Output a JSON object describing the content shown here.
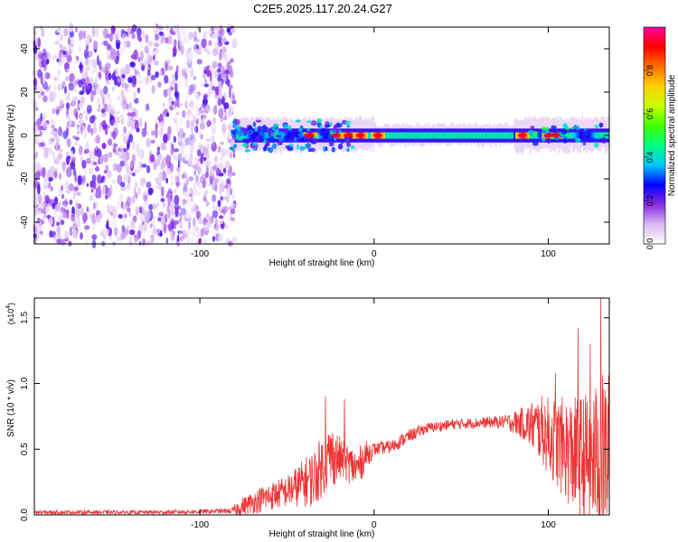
{
  "figure": {
    "title": "C2E5.2025.117.20.24.G27"
  },
  "chart_data": [
    {
      "type": "heatmap",
      "xlabel": "Height of straight line (km)",
      "ylabel": "Frequency (Hz)",
      "xlim": [
        -195,
        135
      ],
      "ylim": [
        -50,
        50
      ],
      "xticks": [
        -100,
        0,
        100
      ],
      "yticks": [
        -40,
        -20,
        0,
        20,
        40
      ],
      "colorbar": {
        "label": "Normalized spectral amplitude",
        "range": [
          0,
          1
        ],
        "ticks": [
          0.0,
          0.2,
          0.4,
          0.6,
          0.8
        ],
        "colormap": [
          "#ffffff",
          "#d8b8f0",
          "#8a2be2",
          "#0000ff",
          "#00c8ff",
          "#00ff80",
          "#40ff00",
          "#c8ff00",
          "#ffd000",
          "#ff7000",
          "#ff0000",
          "#ff00a0"
        ]
      },
      "description": "Noise region below -80 km with scattered purple; narrow band near 0 Hz from -80 to 132 km with peaks (red) at about -35, -20, -10, 0, 85, 105 km",
      "peaks_x": [
        -37,
        -22,
        -15,
        -8,
        2,
        85,
        100,
        104
      ]
    },
    {
      "type": "line",
      "xlabel": "Height of straight line (km)",
      "ylabel": "SNR (10 * v/v)",
      "yscale_label": "(x10",
      "yscale_exp": "4",
      "yscale_close": ")",
      "xlim": [
        -195,
        135
      ],
      "ylim": [
        0,
        1.65
      ],
      "xticks": [
        -100,
        0,
        100
      ],
      "yticks": [
        0.0,
        0.5,
        1.0,
        1.5
      ],
      "color": "#ee3333",
      "envelope": {
        "x": [
          -195,
          -120,
          -82,
          -78,
          -65,
          -50,
          -35,
          -25,
          -18,
          -10,
          -5,
          0,
          10,
          20,
          30,
          45,
          60,
          75,
          85,
          95,
          105,
          115,
          125,
          132
        ],
        "mean": [
          0.02,
          0.02,
          0.03,
          0.05,
          0.12,
          0.18,
          0.28,
          0.45,
          0.42,
          0.35,
          0.45,
          0.5,
          0.52,
          0.6,
          0.66,
          0.69,
          0.7,
          0.71,
          0.7,
          0.66,
          0.55,
          0.45,
          0.42,
          0.45
        ],
        "amp": [
          0.015,
          0.015,
          0.02,
          0.06,
          0.1,
          0.12,
          0.22,
          0.25,
          0.15,
          0.15,
          0.12,
          0.05,
          0.05,
          0.05,
          0.04,
          0.04,
          0.04,
          0.05,
          0.12,
          0.25,
          0.35,
          0.45,
          0.55,
          0.65
        ]
      },
      "spikes": [
        {
          "x": -28,
          "y": 0.9
        },
        {
          "x": -17,
          "y": 0.88
        },
        {
          "x": 104,
          "y": 1.08
        },
        {
          "x": 117,
          "y": 1.42
        },
        {
          "x": 124,
          "y": 1.3
        },
        {
          "x": 130,
          "y": 1.65
        }
      ]
    }
  ]
}
